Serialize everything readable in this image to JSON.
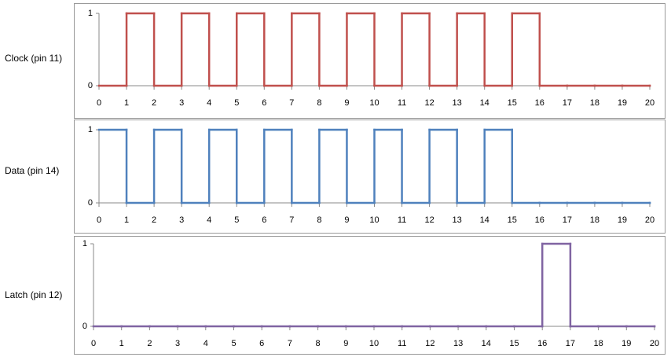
{
  "chart_data": [
    {
      "type": "step",
      "y_label": "Clock (pin 11)",
      "color": "#c0504d",
      "x": [
        0,
        1,
        2,
        3,
        4,
        5,
        6,
        7,
        8,
        9,
        10,
        11,
        12,
        13,
        14,
        15,
        16,
        17,
        18,
        19,
        20
      ],
      "values": [
        0,
        1,
        0,
        1,
        0,
        1,
        0,
        1,
        0,
        1,
        0,
        1,
        0,
        1,
        0,
        1,
        0,
        0,
        0,
        0,
        0
      ],
      "xlim": [
        0,
        20
      ],
      "ylim": [
        0,
        1
      ],
      "xticks": [
        0,
        1,
        2,
        3,
        4,
        5,
        6,
        7,
        8,
        9,
        10,
        11,
        12,
        13,
        14,
        15,
        16,
        17,
        18,
        19,
        20
      ],
      "yticks": [
        0,
        1
      ]
    },
    {
      "type": "step",
      "y_label": "Data (pin 14)",
      "color": "#4f81bd",
      "x": [
        0,
        1,
        2,
        3,
        4,
        5,
        6,
        7,
        8,
        9,
        10,
        11,
        12,
        13,
        14,
        15,
        16,
        17,
        18,
        19,
        20
      ],
      "values": [
        1,
        0,
        1,
        0,
        1,
        0,
        1,
        0,
        1,
        0,
        1,
        0,
        1,
        0,
        1,
        0,
        0,
        0,
        0,
        0,
        0
      ],
      "xlim": [
        0,
        20
      ],
      "ylim": [
        0,
        1
      ],
      "xticks": [
        0,
        1,
        2,
        3,
        4,
        5,
        6,
        7,
        8,
        9,
        10,
        11,
        12,
        13,
        14,
        15,
        16,
        17,
        18,
        19,
        20
      ],
      "yticks": [
        0,
        1
      ]
    },
    {
      "type": "step",
      "y_label": "Latch (pin 12)",
      "color": "#8064a2",
      "x": [
        0,
        1,
        2,
        3,
        4,
        5,
        6,
        7,
        8,
        9,
        10,
        11,
        12,
        13,
        14,
        15,
        16,
        17,
        18,
        19,
        20
      ],
      "values": [
        0,
        0,
        0,
        0,
        0,
        0,
        0,
        0,
        0,
        0,
        0,
        0,
        0,
        0,
        0,
        0,
        1,
        0,
        0,
        0,
        0
      ],
      "xlim": [
        0,
        20
      ],
      "ylim": [
        0,
        1
      ],
      "xticks": [
        0,
        1,
        2,
        3,
        4,
        5,
        6,
        7,
        8,
        9,
        10,
        11,
        12,
        13,
        14,
        15,
        16,
        17,
        18,
        19,
        20
      ],
      "yticks": [
        0,
        1
      ]
    }
  ]
}
